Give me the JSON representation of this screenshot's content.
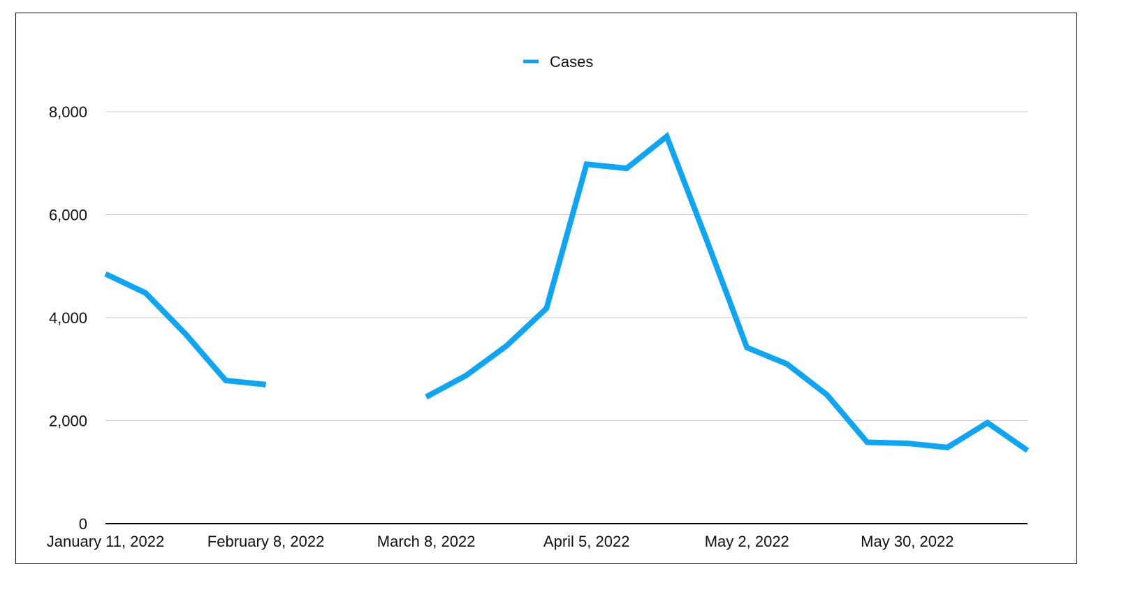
{
  "chart_data": {
    "type": "line",
    "title": "",
    "xlabel": "",
    "ylabel": "",
    "legend": {
      "placement": "top-center",
      "label": "Cases"
    },
    "ylim": [
      0,
      8000
    ],
    "y_ticks": [
      0,
      2000,
      4000,
      6000,
      8000
    ],
    "y_tick_labels": [
      "0",
      "2,000",
      "4,000",
      "6,000",
      "8,000"
    ],
    "x_tick_labels": [
      "January 11, 2022",
      "February 8, 2022",
      "March 8, 2022",
      "April 5, 2022",
      "May 2, 2022",
      "May 30, 2022"
    ],
    "grid": true,
    "colors": {
      "series": "#0ea5f5",
      "grid": "#c8c8c8",
      "axis": "#000000"
    },
    "series": [
      {
        "name": "Cases",
        "x": [
          "2022-01-11",
          "2022-01-18",
          "2022-01-25",
          "2022-02-01",
          "2022-02-08",
          "2022-02-15",
          "2022-02-22",
          "2022-03-01",
          "2022-03-08",
          "2022-03-15",
          "2022-03-22",
          "2022-03-29",
          "2022-04-05",
          "2022-04-12",
          "2022-04-19",
          "2022-04-26",
          "2022-05-02",
          "2022-05-09",
          "2022-05-16",
          "2022-05-23",
          "2022-05-30",
          "2022-06-06",
          "2022-06-13",
          "2022-06-20"
        ],
        "values": [
          4850,
          4480,
          3680,
          2780,
          2700,
          null,
          null,
          null,
          2460,
          2880,
          3450,
          4180,
          6980,
          6900,
          7520,
          5500,
          3420,
          3100,
          2500,
          1580,
          1560,
          1480,
          1960,
          1420
        ]
      }
    ]
  }
}
